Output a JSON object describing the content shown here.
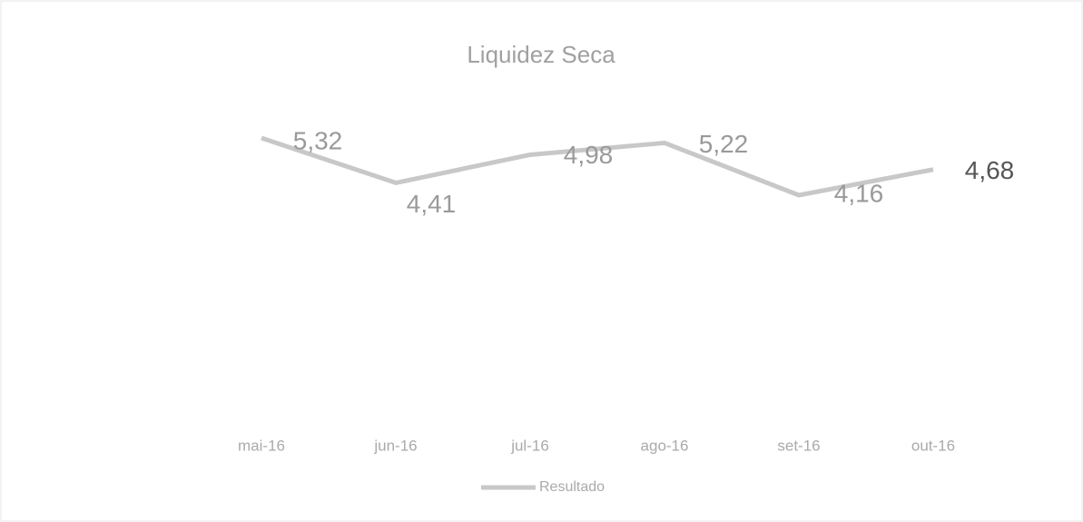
{
  "chart_data": {
    "type": "line",
    "title": "Liquidez Seca",
    "categories": [
      "mai-16",
      "jun-16",
      "jul-16",
      "ago-16",
      "set-16",
      "out-16"
    ],
    "series": [
      {
        "name": "Resultado",
        "color": "#c8c8c8",
        "values": [
          5.32,
          4.41,
          4.98,
          5.22,
          4.16,
          4.68
        ],
        "value_labels": [
          "5,32",
          "4,41",
          "4,98",
          "5,22",
          "4,16",
          "4,68"
        ]
      }
    ],
    "legend": "bottom"
  }
}
